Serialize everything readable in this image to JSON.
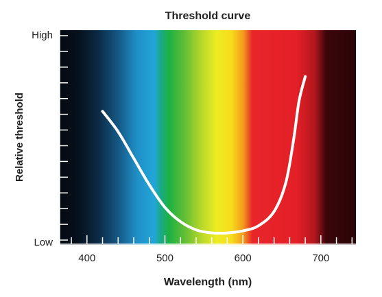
{
  "chart_data": {
    "type": "line",
    "title": "Threshold curve",
    "xlabel": "Wavelength (nm)",
    "ylabel": "Relative threshold",
    "xlim": [
      365,
      745
    ],
    "ylim": [
      0,
      1
    ],
    "x_ticks": [
      400,
      500,
      600,
      700
    ],
    "y_tick_labels": {
      "high": "High",
      "low": "Low"
    },
    "grid": false,
    "background": "visible-spectrum gradient",
    "series": [
      {
        "values": [
          {
            "x": 420,
            "y": 0.63
          },
          {
            "x": 440,
            "y": 0.53
          },
          {
            "x": 460,
            "y": 0.4
          },
          {
            "x": 480,
            "y": 0.27
          },
          {
            "x": 500,
            "y": 0.16
          },
          {
            "x": 520,
            "y": 0.09
          },
          {
            "x": 540,
            "y": 0.05
          },
          {
            "x": 560,
            "y": 0.035
          },
          {
            "x": 580,
            "y": 0.035
          },
          {
            "x": 600,
            "y": 0.045
          },
          {
            "x": 620,
            "y": 0.07
          },
          {
            "x": 640,
            "y": 0.14
          },
          {
            "x": 655,
            "y": 0.28
          },
          {
            "x": 665,
            "y": 0.49
          },
          {
            "x": 672,
            "y": 0.68
          },
          {
            "x": 680,
            "y": 0.8
          }
        ]
      }
    ]
  },
  "colors": {
    "curve": "#ffffff",
    "axis": "#ffffff",
    "text": "#222222"
  }
}
